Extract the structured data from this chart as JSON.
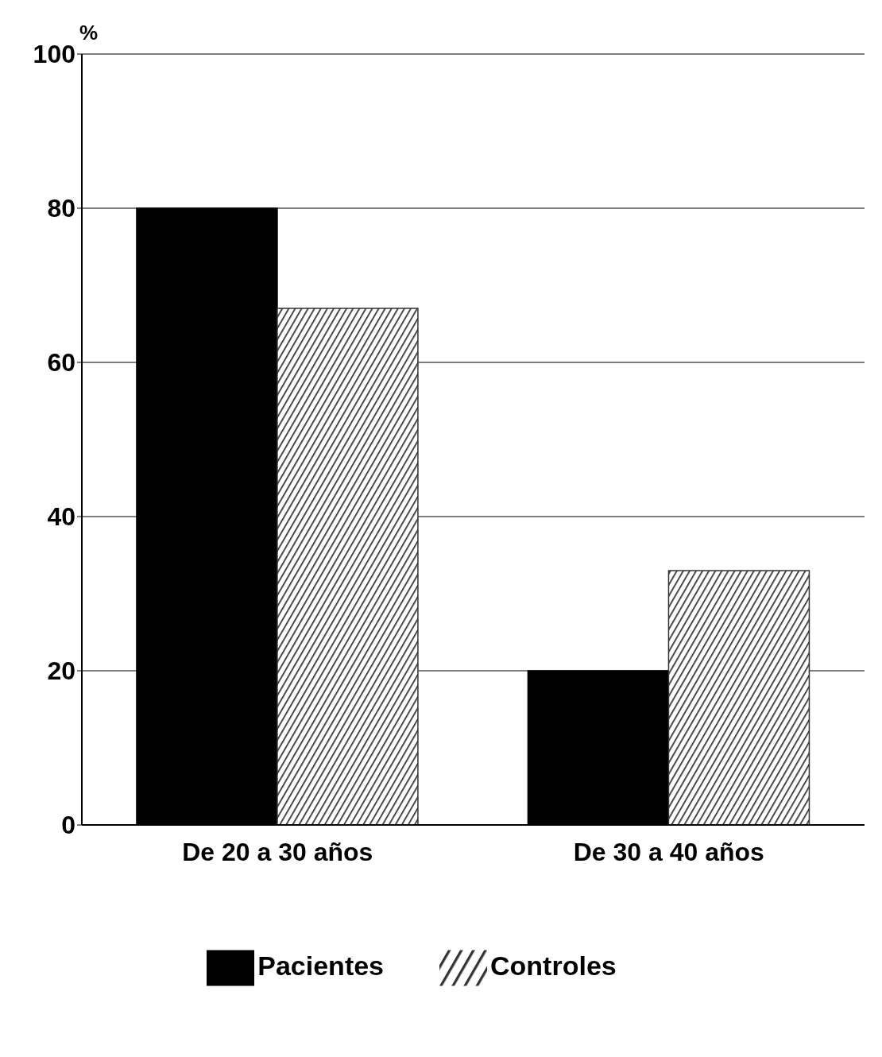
{
  "chart_data": {
    "type": "bar",
    "ylabel": "%",
    "categories": [
      "De 20 a 30 años",
      "De 30 a 40 años"
    ],
    "series": [
      {
        "name": "Pacientes",
        "color": "#000000",
        "values": [
          80,
          20
        ]
      },
      {
        "name": "Controles",
        "color": "#333333",
        "values": [
          67,
          33
        ]
      }
    ],
    "ylim": [
      0,
      100
    ],
    "yticks": [
      0,
      20,
      40,
      60,
      80,
      100
    ],
    "grid": "y",
    "legend": "bottom"
  }
}
